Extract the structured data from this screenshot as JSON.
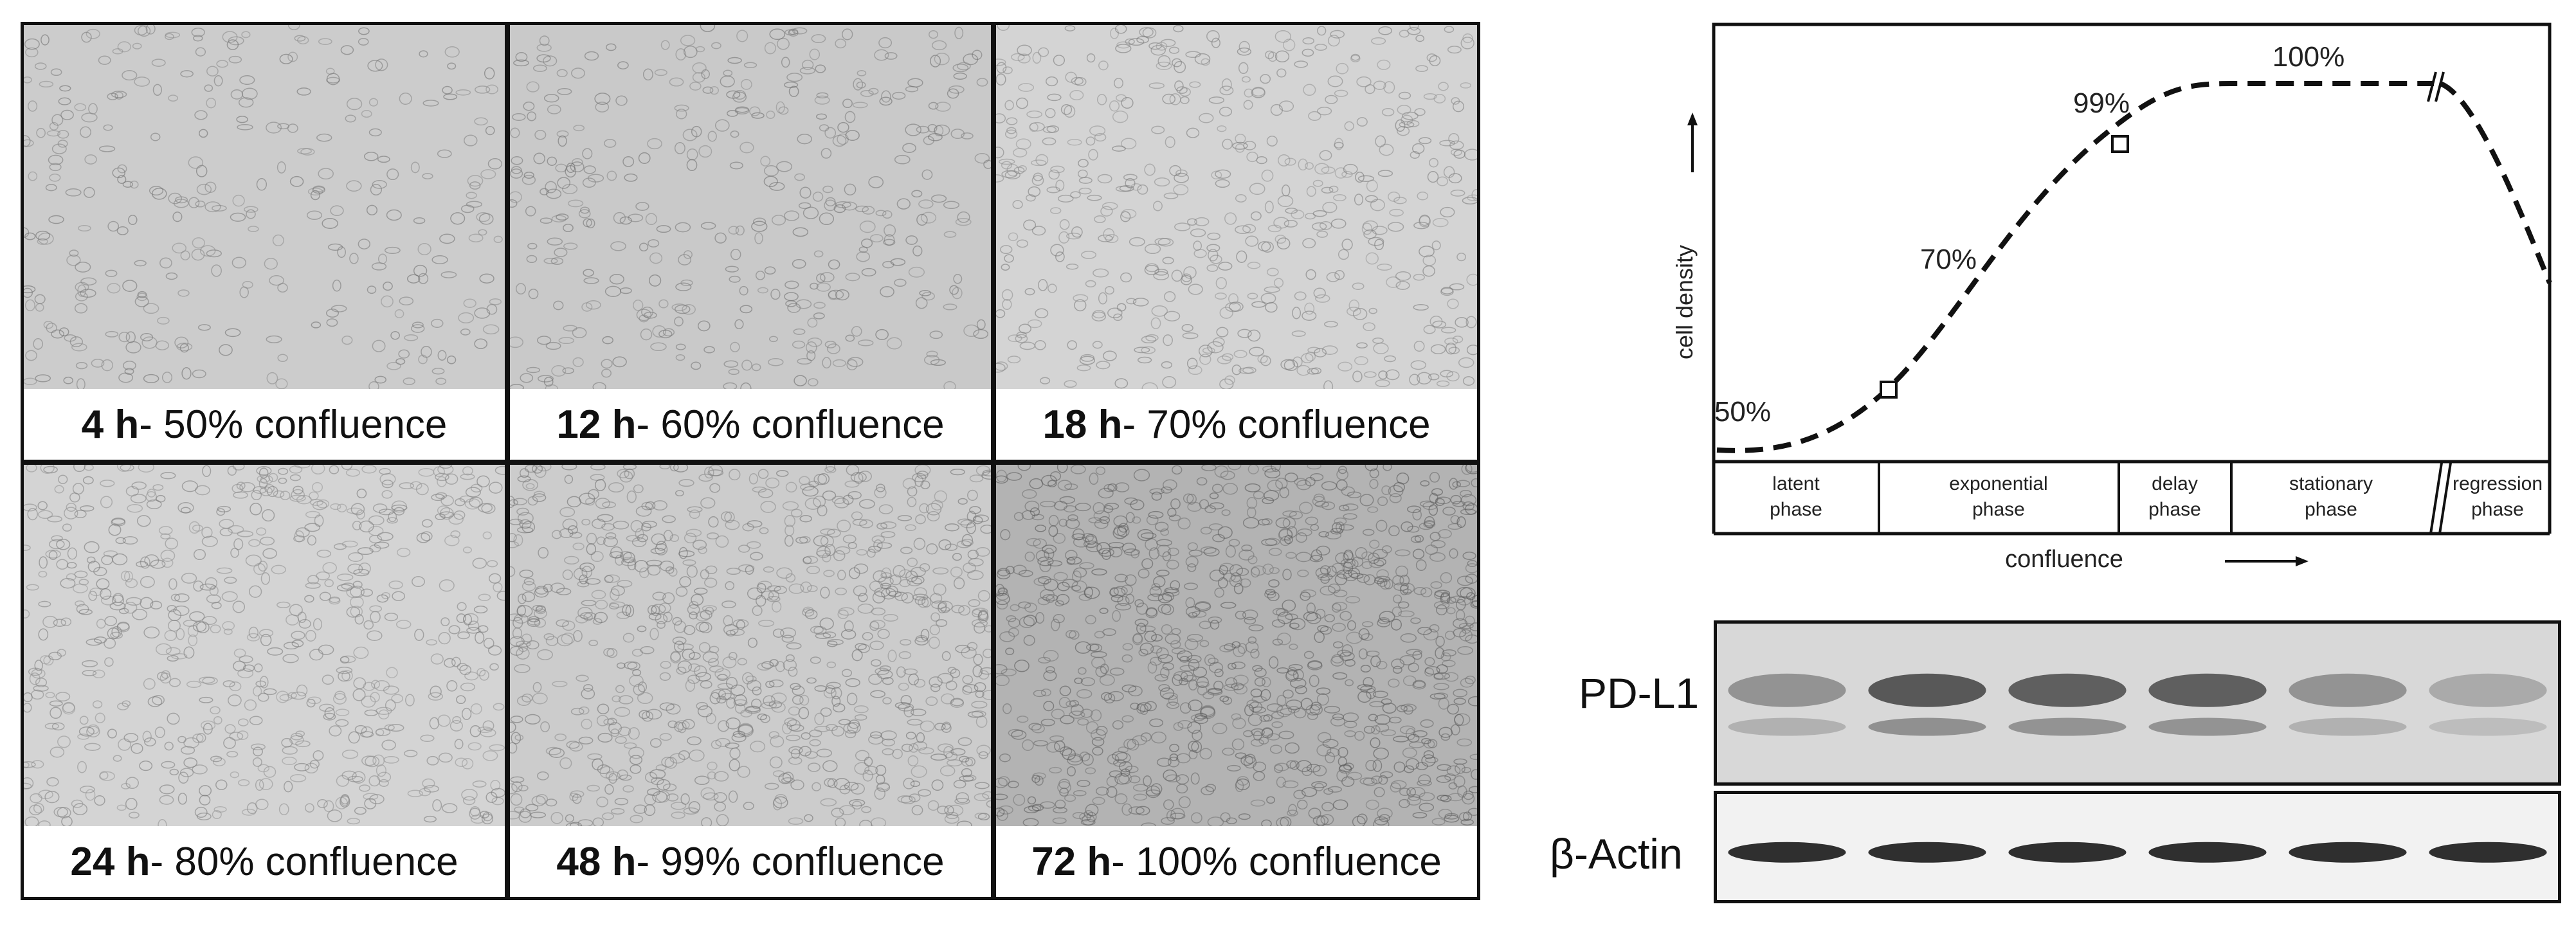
{
  "micrographs": [
    {
      "time": "4 h",
      "confluence": " - 50% confluence",
      "tone": 0.8,
      "density": 0.22
    },
    {
      "time": "12 h",
      "confluence": " - 60% confluence",
      "tone": 0.79,
      "density": 0.3
    },
    {
      "time": "18 h",
      "confluence": " - 70% confluence",
      "tone": 0.83,
      "density": 0.45
    },
    {
      "time": "24 h",
      "confluence": " - 80% confluence",
      "tone": 0.83,
      "density": 0.6
    },
    {
      "time": "48 h",
      "confluence": " - 99% confluence",
      "tone": 0.8,
      "density": 0.85
    },
    {
      "time": "72 h",
      "confluence": " - 100% confluence",
      "tone": 0.7,
      "density": 1.0
    }
  ],
  "growth_curve": {
    "ylabel": "cell density",
    "xlabel": "confluence",
    "annotations": [
      "50%",
      "70%",
      "99%",
      "100%"
    ],
    "phases": [
      {
        "line1": "latent",
        "line2": "phase"
      },
      {
        "line1": "exponential",
        "line2": "phase"
      },
      {
        "line1": "delay",
        "line2": "phase"
      },
      {
        "line1": "stationary",
        "line2": "phase"
      },
      {
        "line1": "regression",
        "line2": "phase"
      }
    ]
  },
  "western_blot": {
    "rows": [
      {
        "label": "PD-L1",
        "intensities": [
          0.45,
          0.85,
          0.8,
          0.8,
          0.45,
          0.3
        ]
      },
      {
        "label": "β-Actin",
        "intensities": [
          1.0,
          1.0,
          1.0,
          1.0,
          1.0,
          1.0
        ]
      }
    ],
    "lanes": 6
  },
  "colors": {
    "border": "#111111",
    "curve": "#111111",
    "band": "#1a1a1a"
  }
}
